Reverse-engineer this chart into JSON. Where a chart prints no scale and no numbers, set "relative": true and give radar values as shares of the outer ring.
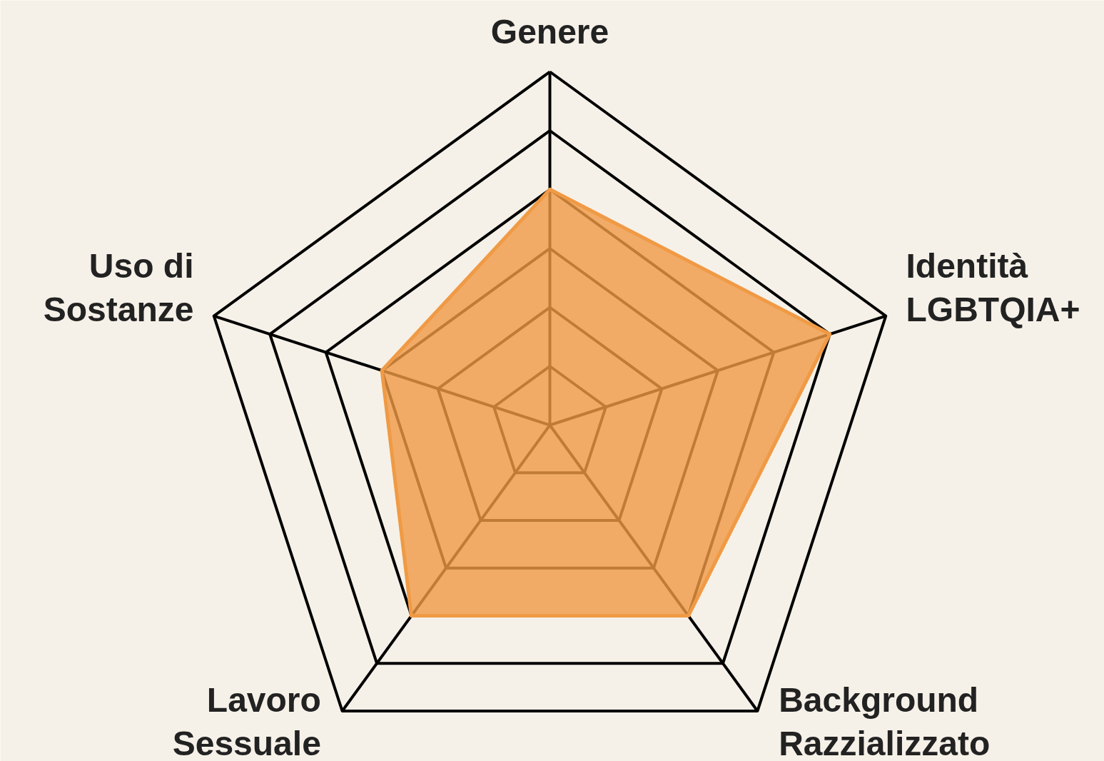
{
  "chart_data": {
    "type": "radar",
    "relative": true,
    "grid": true,
    "categories": [
      "Genere",
      "Identità\nLGBTQIA+",
      "Background\nRazzializzato",
      "Lavoro\nSessuale",
      "Uso di\nSostanze"
    ],
    "series": [
      {
        "color": "#f09a45",
        "values": [
          0.667,
          0.833,
          0.667,
          0.667,
          0.5
        ]
      }
    ]
  }
}
